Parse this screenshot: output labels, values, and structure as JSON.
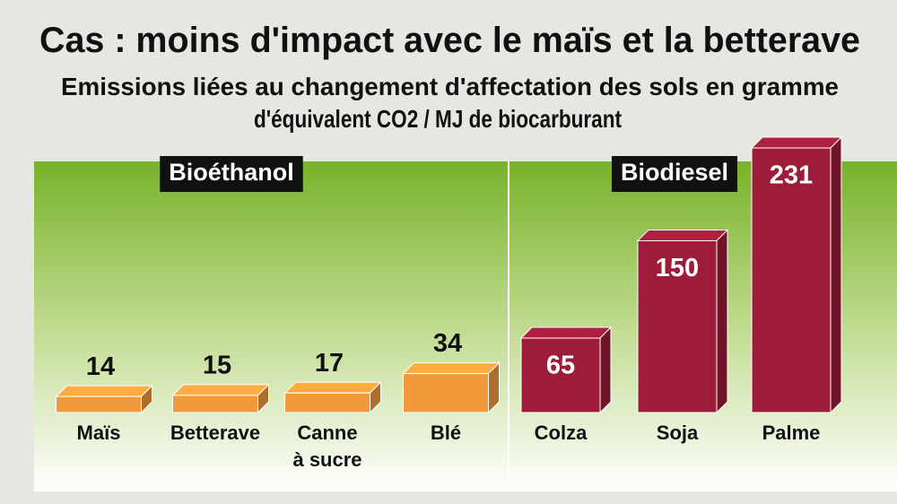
{
  "chart_data": {
    "type": "bar3d",
    "title": "Cas : moins d'impact avec le maïs et la betterave",
    "subtitle": [
      "Emissions liées au changement d'affectation des sols en gramme",
      "d'équivalent CO2 / MJ de biocarburant"
    ],
    "series": [
      {
        "name": "Bioéthanol",
        "color": "#f09a3c",
        "categories": [
          "Maïs",
          "Betterave",
          "Canne\nà sucre",
          "Blé"
        ],
        "values": [
          14,
          15,
          17,
          34
        ]
      },
      {
        "name": "Biodiesel",
        "color": "#9c1c3a",
        "categories": [
          "Colza",
          "Soja",
          "Palme"
        ],
        "values": [
          65,
          150,
          231
        ]
      }
    ]
  }
}
